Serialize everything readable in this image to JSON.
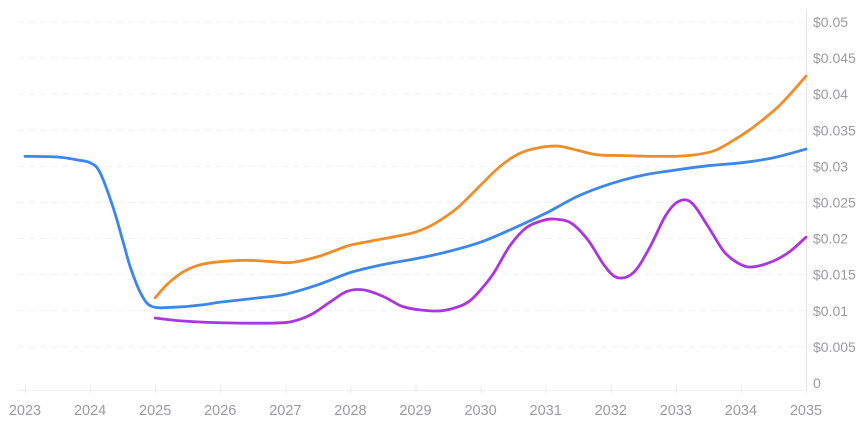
{
  "chart_data": {
    "type": "line",
    "title": "",
    "xlabel": "",
    "ylabel": "",
    "legend": null,
    "grid": "horizontal-dashed",
    "y_axis_position": "right",
    "currency_prefix": "$",
    "x_range": [
      2023,
      2035
    ],
    "y_range": [
      0,
      0.05
    ],
    "y_step": 0.005,
    "x_ticks": [
      {
        "value": 2023,
        "label": "2023"
      },
      {
        "value": 2024,
        "label": "2024"
      },
      {
        "value": 2025,
        "label": "2025"
      },
      {
        "value": 2026,
        "label": "2026"
      },
      {
        "value": 2027,
        "label": "2027"
      },
      {
        "value": 2028,
        "label": "2028"
      },
      {
        "value": 2029,
        "label": "2029"
      },
      {
        "value": 2030,
        "label": "2030"
      },
      {
        "value": 2031,
        "label": "2031"
      },
      {
        "value": 2032,
        "label": "2032"
      },
      {
        "value": 2033,
        "label": "2033"
      },
      {
        "value": 2034,
        "label": "2034"
      },
      {
        "value": 2035,
        "label": "2035"
      }
    ],
    "y_ticks": [
      {
        "value": 0.05,
        "label": "$0.05"
      },
      {
        "value": 0.045,
        "label": "$0.045"
      },
      {
        "value": 0.04,
        "label": "$0.04"
      },
      {
        "value": 0.035,
        "label": "$0.035"
      },
      {
        "value": 0.03,
        "label": "$0.03"
      },
      {
        "value": 0.025,
        "label": "$0.025"
      },
      {
        "value": 0.02,
        "label": "$0.02"
      },
      {
        "value": 0.015,
        "label": "$0.015"
      },
      {
        "value": 0.01,
        "label": "$0.01"
      },
      {
        "value": 0.005,
        "label": "$0.005"
      },
      {
        "value": 0,
        "label": "0"
      }
    ],
    "series": [
      {
        "name": "blue-line",
        "color": "#3b87ee",
        "points": [
          [
            2023.0,
            0.0314
          ],
          [
            2023.5,
            0.0313
          ],
          [
            2023.8,
            0.0309
          ],
          [
            2024.0,
            0.0305
          ],
          [
            2024.15,
            0.0292
          ],
          [
            2024.35,
            0.0244
          ],
          [
            2024.5,
            0.0198
          ],
          [
            2024.62,
            0.016
          ],
          [
            2024.78,
            0.0124
          ],
          [
            2024.95,
            0.0106
          ],
          [
            2025.3,
            0.0105
          ],
          [
            2025.7,
            0.0108
          ],
          [
            2026.0,
            0.0112
          ],
          [
            2026.5,
            0.0117
          ],
          [
            2027.0,
            0.0123
          ],
          [
            2027.5,
            0.0136
          ],
          [
            2028.0,
            0.0153
          ],
          [
            2028.5,
            0.0164
          ],
          [
            2029.0,
            0.0172
          ],
          [
            2029.5,
            0.0182
          ],
          [
            2030.0,
            0.0195
          ],
          [
            2030.5,
            0.0214
          ],
          [
            2031.0,
            0.0235
          ],
          [
            2031.5,
            0.0259
          ],
          [
            2032.0,
            0.0276
          ],
          [
            2032.5,
            0.0288
          ],
          [
            2033.0,
            0.0295
          ],
          [
            2033.5,
            0.0301
          ],
          [
            2034.0,
            0.0305
          ],
          [
            2034.5,
            0.0312
          ],
          [
            2035.0,
            0.0324
          ]
        ]
      },
      {
        "name": "orange-line",
        "color": "#ef8e29",
        "points": [
          [
            2025.0,
            0.0118
          ],
          [
            2025.2,
            0.0138
          ],
          [
            2025.45,
            0.0155
          ],
          [
            2025.7,
            0.0164
          ],
          [
            2026.0,
            0.0168
          ],
          [
            2026.4,
            0.017
          ],
          [
            2026.8,
            0.0168
          ],
          [
            2027.1,
            0.0167
          ],
          [
            2027.5,
            0.0175
          ],
          [
            2027.75,
            0.0183
          ],
          [
            2028.0,
            0.0191
          ],
          [
            2028.4,
            0.0198
          ],
          [
            2028.7,
            0.0203
          ],
          [
            2029.0,
            0.0209
          ],
          [
            2029.3,
            0.0221
          ],
          [
            2029.65,
            0.0243
          ],
          [
            2030.0,
            0.0274
          ],
          [
            2030.3,
            0.03
          ],
          [
            2030.6,
            0.0318
          ],
          [
            2030.9,
            0.0326
          ],
          [
            2031.2,
            0.0328
          ],
          [
            2031.5,
            0.0322
          ],
          [
            2031.8,
            0.0316
          ],
          [
            2032.2,
            0.0315
          ],
          [
            2032.6,
            0.0314
          ],
          [
            2033.0,
            0.0314
          ],
          [
            2033.3,
            0.0316
          ],
          [
            2033.6,
            0.0322
          ],
          [
            2033.9,
            0.0337
          ],
          [
            2034.2,
            0.0355
          ],
          [
            2034.6,
            0.0385
          ],
          [
            2035.0,
            0.0425
          ]
        ]
      },
      {
        "name": "purple-line",
        "color": "#ab36dd",
        "points": [
          [
            2025.0,
            0.009
          ],
          [
            2025.4,
            0.0086
          ],
          [
            2025.8,
            0.0084
          ],
          [
            2026.3,
            0.0083
          ],
          [
            2026.8,
            0.0083
          ],
          [
            2027.1,
            0.0085
          ],
          [
            2027.4,
            0.0095
          ],
          [
            2027.7,
            0.0113
          ],
          [
            2027.95,
            0.0127
          ],
          [
            2028.2,
            0.0129
          ],
          [
            2028.5,
            0.012
          ],
          [
            2028.8,
            0.0106
          ],
          [
            2029.1,
            0.0101
          ],
          [
            2029.4,
            0.01
          ],
          [
            2029.7,
            0.0107
          ],
          [
            2029.85,
            0.0115
          ],
          [
            2030.0,
            0.0129
          ],
          [
            2030.2,
            0.0152
          ],
          [
            2030.45,
            0.019
          ],
          [
            2030.7,
            0.0215
          ],
          [
            2030.95,
            0.0225
          ],
          [
            2031.15,
            0.0227
          ],
          [
            2031.4,
            0.0221
          ],
          [
            2031.65,
            0.0198
          ],
          [
            2031.9,
            0.0163
          ],
          [
            2032.1,
            0.0146
          ],
          [
            2032.35,
            0.0153
          ],
          [
            2032.6,
            0.0188
          ],
          [
            2032.85,
            0.0233
          ],
          [
            2033.05,
            0.0252
          ],
          [
            2033.25,
            0.0249
          ],
          [
            2033.5,
            0.0216
          ],
          [
            2033.75,
            0.0181
          ],
          [
            2034.0,
            0.0164
          ],
          [
            2034.2,
            0.0161
          ],
          [
            2034.5,
            0.0169
          ],
          [
            2034.75,
            0.0182
          ],
          [
            2035.0,
            0.0202
          ]
        ]
      }
    ],
    "style": {
      "background": "#ffffff",
      "gridline_color": "#ededf1",
      "axis_line_color": "#e7e7ec",
      "baseline_color": "#f3f3f6",
      "tick_mark_color": "#dcdce2",
      "label_color": "#9b9ba1"
    }
  }
}
